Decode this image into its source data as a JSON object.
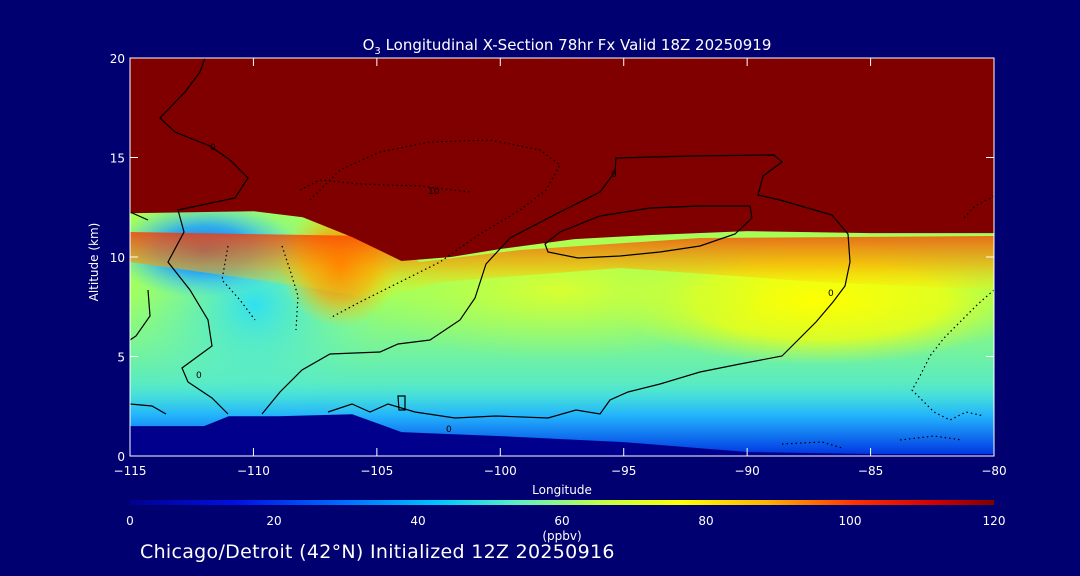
{
  "chart_data": {
    "type": "heatmap",
    "title_prefix": "O",
    "title_subscript": "3",
    "title_rest": " Longitudinal X-Section 78hr  Fx Valid 18Z 20250919",
    "xlabel": "Longitude",
    "ylabel": "Altitude (km)",
    "xlim": [
      -115,
      -80
    ],
    "ylim": [
      0,
      20
    ],
    "x_ticks": [
      -115,
      -110,
      -105,
      -100,
      -95,
      -90,
      -85,
      -80
    ],
    "x_tick_labels": [
      "−115",
      "−110",
      "−105",
      "−100",
      "−95",
      "−90",
      "−85",
      "−80"
    ],
    "y_ticks": [
      0,
      5,
      10,
      15,
      20
    ],
    "y_tick_labels": [
      "0",
      "5",
      "10",
      "15",
      "20"
    ],
    "colorbar": {
      "label": "(ppbv)",
      "min": 0,
      "max": 120,
      "ticks": [
        0,
        20,
        40,
        60,
        80,
        100,
        120
      ],
      "tick_labels": [
        "0",
        "20",
        "40",
        "60",
        "80",
        "100",
        "120"
      ]
    },
    "contour_labels": [
      "0",
      "0",
      "0",
      "0",
      "0",
      "10"
    ],
    "terrain_km": [
      [
        -115,
        1.5
      ],
      [
        -112,
        1.5
      ],
      [
        -111,
        2.0
      ],
      [
        -109,
        2.0
      ],
      [
        -106,
        2.1
      ],
      [
        -104,
        1.2
      ],
      [
        -100,
        1.0
      ],
      [
        -95,
        0.7
      ],
      [
        -90,
        0.2
      ],
      [
        -85,
        0.1
      ],
      [
        -80,
        0.1
      ]
    ],
    "tropopause_km": [
      [
        -115,
        12.2
      ],
      [
        -110,
        12.3
      ],
      [
        -108,
        12.0
      ],
      [
        -106,
        11.0
      ],
      [
        -104,
        9.8
      ],
      [
        -102,
        10.0
      ],
      [
        -100,
        10.4
      ],
      [
        -97,
        10.9
      ],
      [
        -94,
        11.1
      ],
      [
        -90,
        11.3
      ],
      [
        -85,
        11.2
      ],
      [
        -80,
        11.2
      ]
    ],
    "colors": {
      "background": "#000070",
      "stratosphere": "#800000",
      "terrain": "#00008c"
    }
  },
  "footer": {
    "text": "Chicago/Detroit (42°N) Initialized 12Z 20250916"
  }
}
